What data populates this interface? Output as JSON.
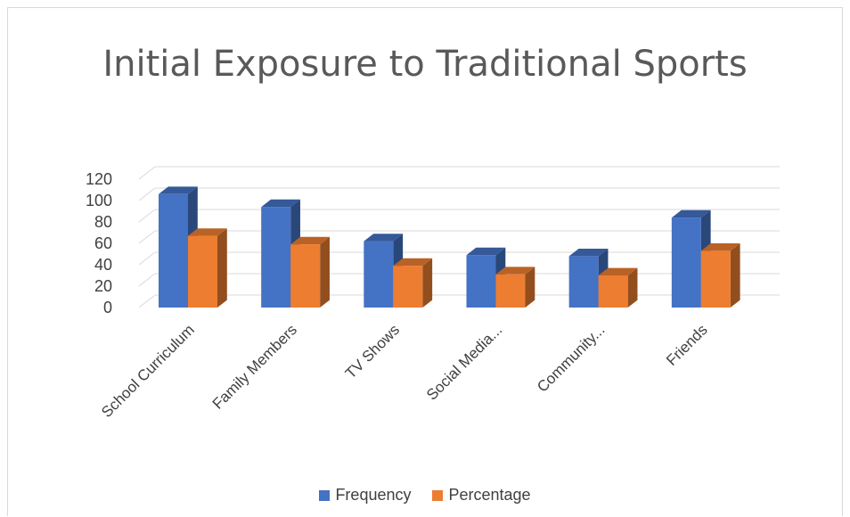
{
  "chart_data": {
    "type": "bar",
    "title": "Initial Exposure to Traditional Sports",
    "xlabel": "",
    "ylabel": "",
    "categories": [
      "School Curriculum",
      "Family Members",
      "TV Shows",
      "Social Media...",
      "Community...",
      "Friends"
    ],
    "series": [
      {
        "name": "Frequency",
        "values": [
          106,
          94,
          62,
          49,
          48,
          84
        ],
        "color": "#4472c4"
      },
      {
        "name": "Percentage",
        "values": [
          67,
          59,
          39,
          31,
          30,
          53
        ],
        "color": "#ed7d31"
      }
    ],
    "yticks": [
      "0",
      "20",
      "40",
      "60",
      "80",
      "100",
      "120"
    ],
    "ylim": [
      0,
      120
    ],
    "grid": true,
    "legend_position": "bottom",
    "style": "3d-clustered-column"
  }
}
